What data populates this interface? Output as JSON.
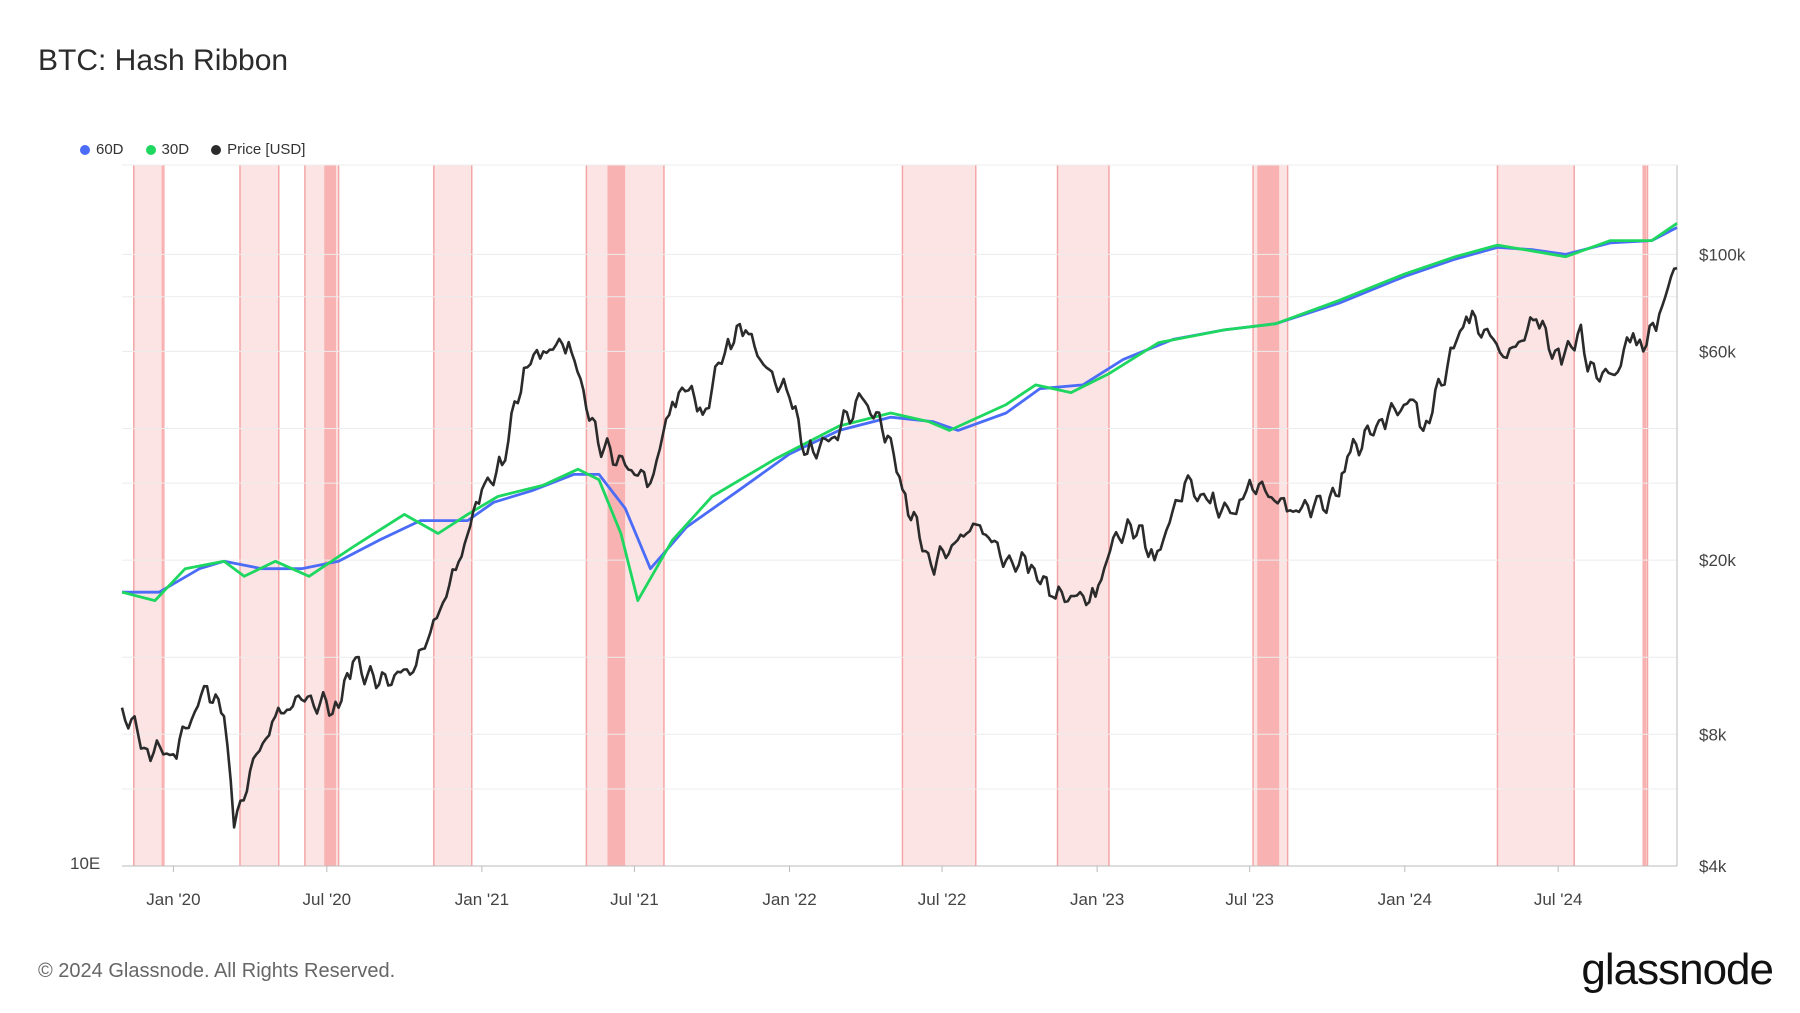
{
  "title": "BTC: Hash Ribbon",
  "footer": "© 2024 Glassnode. All Rights Reserved.",
  "brand": "glassnode",
  "colors": {
    "d60": "#4a6cf7",
    "d30": "#1ed760",
    "price": "#2b2b2b",
    "band": "#fde4e4",
    "band_dark": "#f8b2b2"
  },
  "chart_data": {
    "type": "line",
    "title": "BTC: Hash Ribbon",
    "legend": [
      {
        "name": "60D",
        "color": "#4a6cf7"
      },
      {
        "name": "30D",
        "color": "#1ed760"
      },
      {
        "name": "Price [USD]",
        "color": "#2b2b2b"
      }
    ],
    "x_ticks": [
      "Jan '20",
      "Jul '20",
      "Jan '21",
      "Jul '21",
      "Jan '22",
      "Jul '22",
      "Jan '23",
      "Jul '23",
      "Jan '24",
      "Jul '24"
    ],
    "x_range": [
      "2019-11-01",
      "2024-11-19"
    ],
    "y_left_label": "10E",
    "y_right_ticks": [
      "$100k",
      "$60k",
      "$20k",
      "$8k",
      "$4k"
    ],
    "y_right_scale": "log",
    "y_right_range": [
      4000,
      160000
    ],
    "capitulation_bands": [
      [
        "2019-11-15",
        "2019-12-20"
      ],
      [
        "2020-03-20",
        "2020-05-05"
      ],
      [
        "2020-06-05",
        "2020-07-15"
      ],
      [
        "2020-11-05",
        "2020-12-20"
      ],
      [
        "2021-05-05",
        "2021-08-05"
      ],
      [
        "2022-05-15",
        "2022-08-10"
      ],
      [
        "2022-11-15",
        "2023-01-15"
      ],
      [
        "2023-07-05",
        "2023-08-15"
      ],
      [
        "2024-04-20",
        "2024-07-20"
      ],
      [
        "2024-10-10",
        "2024-10-15"
      ]
    ],
    "series": [
      {
        "name": "Price [USD]",
        "points": [
          [
            "2019-11-01",
            9200
          ],
          [
            "2019-12-01",
            7400
          ],
          [
            "2019-12-20",
            7200
          ],
          [
            "2020-01-01",
            7200
          ],
          [
            "2020-02-10",
            10300
          ],
          [
            "2020-03-01",
            8800
          ],
          [
            "2020-03-13",
            4900
          ],
          [
            "2020-04-01",
            6600
          ],
          [
            "2020-05-01",
            8800
          ],
          [
            "2020-06-01",
            9600
          ],
          [
            "2020-07-15",
            9200
          ],
          [
            "2020-08-01",
            11700
          ],
          [
            "2020-09-01",
            10400
          ],
          [
            "2020-10-15",
            11500
          ],
          [
            "2020-11-01",
            13700
          ],
          [
            "2020-12-01",
            19000
          ],
          [
            "2021-01-01",
            29000
          ],
          [
            "2021-01-25",
            33000
          ],
          [
            "2021-02-20",
            55000
          ],
          [
            "2021-03-15",
            60000
          ],
          [
            "2021-04-14",
            63000
          ],
          [
            "2021-05-19",
            37000
          ],
          [
            "2021-06-20",
            33000
          ],
          [
            "2021-07-20",
            30000
          ],
          [
            "2021-08-15",
            46000
          ],
          [
            "2021-09-07",
            50000
          ],
          [
            "2021-09-20",
            43000
          ],
          [
            "2021-10-20",
            64000
          ],
          [
            "2021-11-10",
            67000
          ],
          [
            "2021-12-01",
            56000
          ],
          [
            "2022-01-01",
            47000
          ],
          [
            "2022-01-22",
            35000
          ],
          [
            "2022-02-20",
            38000
          ],
          [
            "2022-03-28",
            47000
          ],
          [
            "2022-05-01",
            38000
          ],
          [
            "2022-05-15",
            29000
          ],
          [
            "2022-06-18",
            19500
          ],
          [
            "2022-07-30",
            23000
          ],
          [
            "2022-08-15",
            24000
          ],
          [
            "2022-09-15",
            20000
          ],
          [
            "2022-10-15",
            19500
          ],
          [
            "2022-11-09",
            16500
          ],
          [
            "2022-12-30",
            16500
          ],
          [
            "2023-01-20",
            22500
          ],
          [
            "2023-02-20",
            24000
          ],
          [
            "2023-03-10",
            20000
          ],
          [
            "2023-04-15",
            30000
          ],
          [
            "2023-05-15",
            27000
          ],
          [
            "2023-06-15",
            25500
          ],
          [
            "2023-07-01",
            30500
          ],
          [
            "2023-08-18",
            26000
          ],
          [
            "2023-09-15",
            26500
          ],
          [
            "2023-10-15",
            28000
          ],
          [
            "2023-10-25",
            34500
          ],
          [
            "2023-12-05",
            42000
          ],
          [
            "2024-01-11",
            46500
          ],
          [
            "2024-01-23",
            39500
          ],
          [
            "2024-02-28",
            61000
          ],
          [
            "2024-03-14",
            72000
          ],
          [
            "2024-04-15",
            64000
          ],
          [
            "2024-05-01",
            58000
          ],
          [
            "2024-06-05",
            71000
          ],
          [
            "2024-07-05",
            56000
          ],
          [
            "2024-07-28",
            69000
          ],
          [
            "2024-08-05",
            54000
          ],
          [
            "2024-09-06",
            53000
          ],
          [
            "2024-09-28",
            66000
          ],
          [
            "2024-10-10",
            60000
          ],
          [
            "2024-10-29",
            73000
          ],
          [
            "2024-11-12",
            89000
          ],
          [
            "2024-11-19",
            93000
          ]
        ]
      },
      {
        "name": "60D",
        "points": [
          [
            "2019-11-01",
            0.33
          ],
          [
            "2019-12-15",
            0.33
          ],
          [
            "2020-02-01",
            0.36
          ],
          [
            "2020-03-01",
            0.37
          ],
          [
            "2020-04-15",
            0.36
          ],
          [
            "2020-06-01",
            0.36
          ],
          [
            "2020-07-15",
            0.37
          ],
          [
            "2020-09-01",
            0.4
          ],
          [
            "2020-10-20",
            0.43
          ],
          [
            "2020-12-15",
            0.43
          ],
          [
            "2021-01-15",
            0.46
          ],
          [
            "2021-03-01",
            0.48
          ],
          [
            "2021-04-20",
            0.51
          ],
          [
            "2021-05-20",
            0.51
          ],
          [
            "2021-06-20",
            0.45
          ],
          [
            "2021-07-20",
            0.36
          ],
          [
            "2021-09-01",
            0.42
          ],
          [
            "2021-11-01",
            0.48
          ],
          [
            "2022-01-01",
            0.55
          ],
          [
            "2022-03-01",
            0.6
          ],
          [
            "2022-05-01",
            0.63
          ],
          [
            "2022-06-20",
            0.62
          ],
          [
            "2022-07-20",
            0.6
          ],
          [
            "2022-09-15",
            0.64
          ],
          [
            "2022-10-25",
            0.7
          ],
          [
            "2022-12-15",
            0.71
          ],
          [
            "2023-02-01",
            0.78
          ],
          [
            "2023-04-01",
            0.84
          ],
          [
            "2023-06-01",
            0.87
          ],
          [
            "2023-08-01",
            0.89
          ],
          [
            "2023-10-15",
            0.96
          ],
          [
            "2024-01-01",
            1.06
          ],
          [
            "2024-03-01",
            1.13
          ],
          [
            "2024-04-20",
            1.18
          ],
          [
            "2024-06-01",
            1.17
          ],
          [
            "2024-07-10",
            1.15
          ],
          [
            "2024-09-01",
            1.2
          ],
          [
            "2024-10-20",
            1.21
          ],
          [
            "2024-11-19",
            1.27
          ]
        ]
      },
      {
        "name": "30D",
        "points": [
          [
            "2019-11-01",
            0.33
          ],
          [
            "2019-12-10",
            0.32
          ],
          [
            "2020-01-15",
            0.36
          ],
          [
            "2020-03-01",
            0.37
          ],
          [
            "2020-03-25",
            0.35
          ],
          [
            "2020-05-01",
            0.37
          ],
          [
            "2020-06-10",
            0.35
          ],
          [
            "2020-08-01",
            0.39
          ],
          [
            "2020-10-01",
            0.44
          ],
          [
            "2020-11-10",
            0.41
          ],
          [
            "2020-12-15",
            0.44
          ],
          [
            "2021-01-20",
            0.47
          ],
          [
            "2021-03-15",
            0.49
          ],
          [
            "2021-04-25",
            0.52
          ],
          [
            "2021-05-20",
            0.5
          ],
          [
            "2021-06-15",
            0.41
          ],
          [
            "2021-07-05",
            0.32
          ],
          [
            "2021-08-15",
            0.4
          ],
          [
            "2021-10-01",
            0.47
          ],
          [
            "2021-12-15",
            0.54
          ],
          [
            "2022-03-01",
            0.61
          ],
          [
            "2022-05-01",
            0.64
          ],
          [
            "2022-06-15",
            0.62
          ],
          [
            "2022-07-10",
            0.6
          ],
          [
            "2022-09-15",
            0.66
          ],
          [
            "2022-10-20",
            0.71
          ],
          [
            "2022-12-01",
            0.69
          ],
          [
            "2023-01-15",
            0.74
          ],
          [
            "2023-03-15",
            0.83
          ],
          [
            "2023-06-01",
            0.87
          ],
          [
            "2023-08-01",
            0.89
          ],
          [
            "2023-10-15",
            0.97
          ],
          [
            "2024-01-01",
            1.07
          ],
          [
            "2024-03-01",
            1.14
          ],
          [
            "2024-04-20",
            1.19
          ],
          [
            "2024-07-10",
            1.14
          ],
          [
            "2024-09-01",
            1.21
          ],
          [
            "2024-10-20",
            1.21
          ],
          [
            "2024-11-19",
            1.29
          ]
        ]
      }
    ]
  }
}
